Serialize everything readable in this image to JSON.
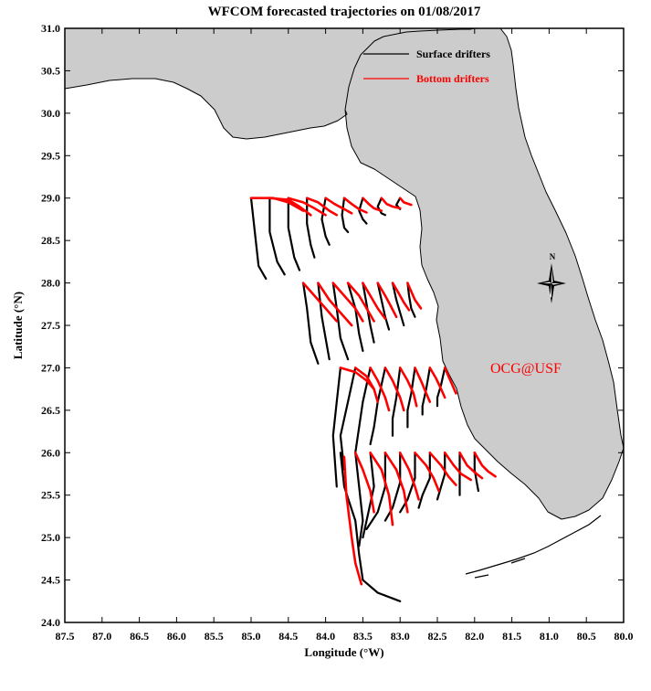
{
  "title": "WFCOM forecasted trajectories on 01/08/2017",
  "x_axis": {
    "label": "Longitude (°W)",
    "range": [
      87.5,
      80.0
    ],
    "ticks": [
      "87.5",
      "87.0",
      "86.5",
      "86.0",
      "85.5",
      "85.0",
      "84.5",
      "84.0",
      "83.5",
      "83.0",
      "82.5",
      "82.0",
      "81.5",
      "81.0",
      "80.5",
      "80.0"
    ]
  },
  "y_axis": {
    "label": "Latitude (°N)",
    "range": [
      24.0,
      31.0
    ],
    "ticks": [
      "31.0",
      "30.5",
      "30.0",
      "29.5",
      "29.0",
      "28.5",
      "28.0",
      "27.5",
      "27.0",
      "26.5",
      "26.0",
      "25.5",
      "25.0",
      "24.5",
      "24.0"
    ]
  },
  "legend": {
    "position": "top-right",
    "surface": {
      "label": "Surface drifters",
      "color": "#000000"
    },
    "bottom": {
      "label": "Bottom drifters",
      "color": "#ff0000"
    }
  },
  "credit": {
    "text": "OCG@USF",
    "color": "#ff0000"
  },
  "north_arrow": {
    "label": "N"
  },
  "colors": {
    "land": "#cccccc",
    "coast": "#000000",
    "surface": "#000000",
    "bottom": "#ff0000"
  },
  "chart_data": {
    "type": "trajectory-map",
    "release_lines": [
      {
        "lat": 29.0,
        "lon_start": 85.0,
        "lon_end": 83.0,
        "count": 9
      },
      {
        "lat": 28.0,
        "lon_start": 84.3,
        "lon_end": 82.9,
        "count": 8
      },
      {
        "lat": 27.0,
        "lon_start": 83.8,
        "lon_end": 82.4,
        "count": 8
      },
      {
        "lat": 26.0,
        "lon_start": 83.8,
        "lon_end": 82.0,
        "count": 10
      }
    ],
    "surface_trajectories": [
      [
        [
          85.0,
          29.0
        ],
        [
          84.95,
          28.6
        ],
        [
          84.9,
          28.2
        ],
        [
          84.8,
          28.05
        ]
      ],
      [
        [
          84.75,
          29.0
        ],
        [
          84.75,
          28.6
        ],
        [
          84.65,
          28.25
        ],
        [
          84.55,
          28.1
        ]
      ],
      [
        [
          84.5,
          29.0
        ],
        [
          84.5,
          28.65
        ],
        [
          84.42,
          28.3
        ],
        [
          84.35,
          28.15
        ]
      ],
      [
        [
          84.25,
          29.0
        ],
        [
          84.25,
          28.7
        ],
        [
          84.2,
          28.45
        ],
        [
          84.15,
          28.3
        ]
      ],
      [
        [
          84.0,
          29.0
        ],
        [
          84.05,
          28.75
        ],
        [
          84.0,
          28.55
        ],
        [
          83.95,
          28.45
        ]
      ],
      [
        [
          83.75,
          29.0
        ],
        [
          83.78,
          28.8
        ],
        [
          83.75,
          28.65
        ],
        [
          83.7,
          28.6
        ]
      ],
      [
        [
          83.5,
          29.0
        ],
        [
          83.55,
          28.85
        ],
        [
          83.5,
          28.75
        ],
        [
          83.45,
          28.7
        ]
      ],
      [
        [
          83.25,
          29.0
        ],
        [
          83.3,
          28.9
        ],
        [
          83.25,
          28.82
        ],
        [
          83.2,
          28.8
        ]
      ],
      [
        [
          83.0,
          29.0
        ],
        [
          83.05,
          28.92
        ],
        [
          83.0,
          28.87
        ]
      ],
      [
        [
          84.3,
          28.0
        ],
        [
          84.25,
          27.7
        ],
        [
          84.2,
          27.3
        ],
        [
          84.1,
          27.05
        ]
      ],
      [
        [
          84.1,
          28.0
        ],
        [
          84.05,
          27.6
        ],
        [
          84.0,
          27.35
        ],
        [
          83.95,
          27.1
        ]
      ],
      [
        [
          83.9,
          28.0
        ],
        [
          83.85,
          27.7
        ],
        [
          83.8,
          27.35
        ],
        [
          83.7,
          27.1
        ]
      ],
      [
        [
          83.7,
          28.0
        ],
        [
          83.6,
          27.7
        ],
        [
          83.55,
          27.4
        ],
        [
          83.5,
          27.2
        ]
      ],
      [
        [
          83.5,
          28.0
        ],
        [
          83.45,
          27.75
        ],
        [
          83.4,
          27.5
        ],
        [
          83.35,
          27.3
        ]
      ],
      [
        [
          83.3,
          28.0
        ],
        [
          83.25,
          27.8
        ],
        [
          83.2,
          27.6
        ],
        [
          83.15,
          27.45
        ]
      ],
      [
        [
          83.1,
          28.0
        ],
        [
          83.05,
          27.8
        ],
        [
          83.0,
          27.65
        ],
        [
          82.95,
          27.5
        ]
      ],
      [
        [
          82.9,
          28.0
        ],
        [
          82.88,
          27.85
        ],
        [
          82.85,
          27.7
        ],
        [
          82.8,
          27.6
        ]
      ],
      [
        [
          83.8,
          27.0
        ],
        [
          83.85,
          26.6
        ],
        [
          83.9,
          26.2
        ],
        [
          83.85,
          25.6
        ]
      ],
      [
        [
          83.6,
          27.0
        ],
        [
          83.7,
          26.6
        ],
        [
          83.8,
          26.2
        ],
        [
          83.75,
          25.8
        ]
      ],
      [
        [
          83.4,
          27.0
        ],
        [
          83.5,
          26.6
        ],
        [
          83.55,
          26.3
        ],
        [
          83.6,
          26.0
        ]
      ],
      [
        [
          83.2,
          27.0
        ],
        [
          83.3,
          26.6
        ],
        [
          83.35,
          26.3
        ],
        [
          83.4,
          26.1
        ]
      ],
      [
        [
          83.0,
          27.0
        ],
        [
          83.05,
          26.65
        ],
        [
          83.1,
          26.4
        ],
        [
          83.1,
          26.2
        ]
      ],
      [
        [
          82.8,
          27.0
        ],
        [
          82.85,
          26.7
        ],
        [
          82.9,
          26.5
        ],
        [
          82.9,
          26.3
        ]
      ],
      [
        [
          82.6,
          27.0
        ],
        [
          82.65,
          26.75
        ],
        [
          82.7,
          26.55
        ],
        [
          82.7,
          26.45
        ]
      ],
      [
        [
          82.4,
          27.0
        ],
        [
          82.45,
          26.8
        ],
        [
          82.5,
          26.65
        ],
        [
          82.5,
          26.55
        ]
      ],
      [
        [
          83.8,
          26.0
        ],
        [
          83.75,
          25.6
        ],
        [
          83.6,
          25.2
        ],
        [
          83.55,
          24.8
        ],
        [
          83.5,
          24.5
        ],
        [
          83.3,
          24.35
        ],
        [
          83.0,
          24.25
        ]
      ],
      [
        [
          83.6,
          26.0
        ],
        [
          83.55,
          25.6
        ],
        [
          83.5,
          25.2
        ],
        [
          83.55,
          24.9
        ]
      ],
      [
        [
          83.4,
          26.0
        ],
        [
          83.35,
          25.6
        ],
        [
          83.45,
          25.2
        ],
        [
          83.5,
          25.0
        ]
      ],
      [
        [
          83.2,
          26.0
        ],
        [
          83.2,
          25.6
        ],
        [
          83.3,
          25.3
        ],
        [
          83.45,
          25.1
        ]
      ],
      [
        [
          83.0,
          26.0
        ],
        [
          83.0,
          25.65
        ],
        [
          83.1,
          25.35
        ],
        [
          83.2,
          25.2
        ]
      ],
      [
        [
          82.8,
          26.0
        ],
        [
          82.8,
          25.7
        ],
        [
          82.9,
          25.45
        ],
        [
          83.0,
          25.3
        ]
      ],
      [
        [
          82.6,
          26.0
        ],
        [
          82.6,
          25.7
        ],
        [
          82.7,
          25.5
        ],
        [
          82.75,
          25.35
        ]
      ],
      [
        [
          82.4,
          26.0
        ],
        [
          82.4,
          25.75
        ],
        [
          82.45,
          25.6
        ],
        [
          82.5,
          25.45
        ]
      ],
      [
        [
          82.2,
          26.0
        ],
        [
          82.2,
          25.75
        ],
        [
          82.2,
          25.6
        ],
        [
          82.2,
          25.5
        ]
      ],
      [
        [
          82.0,
          26.0
        ],
        [
          82.0,
          25.8
        ],
        [
          81.97,
          25.65
        ],
        [
          81.95,
          25.55
        ]
      ]
    ],
    "bottom_trajectories": [
      [
        [
          85.0,
          29.0
        ],
        [
          84.7,
          29.0
        ],
        [
          84.5,
          28.95
        ],
        [
          84.3,
          28.85
        ]
      ],
      [
        [
          84.75,
          29.0
        ],
        [
          84.5,
          28.98
        ],
        [
          84.35,
          28.9
        ],
        [
          84.2,
          28.8
        ]
      ],
      [
        [
          84.5,
          29.0
        ],
        [
          84.3,
          28.95
        ],
        [
          84.15,
          28.88
        ],
        [
          84.0,
          28.8
        ]
      ],
      [
        [
          84.25,
          29.0
        ],
        [
          84.1,
          28.95
        ],
        [
          83.95,
          28.85
        ],
        [
          83.85,
          28.8
        ]
      ],
      [
        [
          84.0,
          29.0
        ],
        [
          83.88,
          28.93
        ],
        [
          83.75,
          28.87
        ],
        [
          83.65,
          28.82
        ]
      ],
      [
        [
          83.75,
          29.0
        ],
        [
          83.65,
          28.93
        ],
        [
          83.55,
          28.87
        ],
        [
          83.45,
          28.83
        ]
      ],
      [
        [
          83.5,
          29.0
        ],
        [
          83.42,
          28.93
        ],
        [
          83.35,
          28.88
        ],
        [
          83.25,
          28.85
        ]
      ],
      [
        [
          83.25,
          29.0
        ],
        [
          83.18,
          28.93
        ],
        [
          83.1,
          28.9
        ],
        [
          83.0,
          28.88
        ]
      ],
      [
        [
          83.0,
          29.0
        ],
        [
          82.95,
          28.95
        ],
        [
          82.85,
          28.92
        ]
      ],
      [
        [
          84.3,
          28.0
        ],
        [
          84.15,
          27.85
        ],
        [
          84.0,
          27.7
        ],
        [
          83.85,
          27.55
        ]
      ],
      [
        [
          84.1,
          28.0
        ],
        [
          83.95,
          27.8
        ],
        [
          83.8,
          27.65
        ],
        [
          83.65,
          27.5
        ]
      ],
      [
        [
          83.9,
          28.0
        ],
        [
          83.75,
          27.85
        ],
        [
          83.6,
          27.7
        ],
        [
          83.5,
          27.55
        ]
      ],
      [
        [
          83.7,
          28.0
        ],
        [
          83.55,
          27.85
        ],
        [
          83.45,
          27.7
        ],
        [
          83.35,
          27.55
        ]
      ],
      [
        [
          83.5,
          28.0
        ],
        [
          83.4,
          27.85
        ],
        [
          83.3,
          27.7
        ],
        [
          83.2,
          27.58
        ]
      ],
      [
        [
          83.3,
          28.0
        ],
        [
          83.2,
          27.85
        ],
        [
          83.12,
          27.72
        ],
        [
          83.05,
          27.6
        ]
      ],
      [
        [
          83.1,
          28.0
        ],
        [
          83.02,
          27.88
        ],
        [
          82.95,
          27.77
        ],
        [
          82.88,
          27.68
        ]
      ],
      [
        [
          82.9,
          28.0
        ],
        [
          82.85,
          27.9
        ],
        [
          82.8,
          27.8
        ],
        [
          82.72,
          27.7
        ]
      ],
      [
        [
          83.8,
          27.0
        ],
        [
          83.6,
          26.95
        ],
        [
          83.45,
          26.85
        ],
        [
          83.35,
          26.75
        ]
      ],
      [
        [
          83.6,
          27.0
        ],
        [
          83.45,
          26.9
        ],
        [
          83.35,
          26.75
        ],
        [
          83.3,
          26.6
        ]
      ],
      [
        [
          83.4,
          27.0
        ],
        [
          83.3,
          26.85
        ],
        [
          83.2,
          26.65
        ],
        [
          83.15,
          26.5
        ]
      ],
      [
        [
          83.2,
          27.0
        ],
        [
          83.1,
          26.85
        ],
        [
          83.0,
          26.65
        ],
        [
          82.95,
          26.5
        ]
      ],
      [
        [
          83.0,
          27.0
        ],
        [
          82.9,
          26.85
        ],
        [
          82.82,
          26.7
        ],
        [
          82.78,
          26.55
        ]
      ],
      [
        [
          82.8,
          27.0
        ],
        [
          82.72,
          26.85
        ],
        [
          82.65,
          26.7
        ],
        [
          82.6,
          26.6
        ]
      ],
      [
        [
          82.6,
          27.0
        ],
        [
          82.52,
          26.88
        ],
        [
          82.45,
          26.75
        ],
        [
          82.4,
          26.65
        ]
      ],
      [
        [
          82.4,
          27.0
        ],
        [
          82.35,
          26.9
        ],
        [
          82.3,
          26.8
        ],
        [
          82.25,
          26.7
        ]
      ],
      [
        [
          83.75,
          25.95
        ],
        [
          83.72,
          25.5
        ],
        [
          83.65,
          25.0
        ],
        [
          83.6,
          24.7
        ],
        [
          83.52,
          24.45
        ]
      ],
      [
        [
          83.6,
          26.0
        ],
        [
          83.5,
          25.8
        ],
        [
          83.4,
          25.55
        ],
        [
          83.35,
          25.3
        ]
      ],
      [
        [
          83.4,
          26.0
        ],
        [
          83.25,
          25.8
        ],
        [
          83.15,
          25.5
        ],
        [
          83.1,
          25.15
        ]
      ],
      [
        [
          83.2,
          26.0
        ],
        [
          83.05,
          25.8
        ],
        [
          82.95,
          25.55
        ],
        [
          82.9,
          25.3
        ]
      ],
      [
        [
          83.0,
          26.0
        ],
        [
          82.88,
          25.8
        ],
        [
          82.8,
          25.6
        ],
        [
          82.75,
          25.45
        ]
      ],
      [
        [
          82.8,
          26.0
        ],
        [
          82.65,
          25.85
        ],
        [
          82.55,
          25.7
        ],
        [
          82.48,
          25.55
        ]
      ],
      [
        [
          82.6,
          26.0
        ],
        [
          82.45,
          25.85
        ],
        [
          82.35,
          25.72
        ],
        [
          82.25,
          25.62
        ]
      ],
      [
        [
          82.4,
          26.0
        ],
        [
          82.28,
          25.85
        ],
        [
          82.18,
          25.75
        ],
        [
          82.05,
          25.68
        ]
      ],
      [
        [
          82.2,
          26.0
        ],
        [
          82.1,
          25.85
        ],
        [
          82.0,
          25.77
        ],
        [
          81.9,
          25.7
        ]
      ],
      [
        [
          82.0,
          26.0
        ],
        [
          81.9,
          25.85
        ],
        [
          81.82,
          25.78
        ],
        [
          81.72,
          25.72
        ]
      ]
    ]
  }
}
